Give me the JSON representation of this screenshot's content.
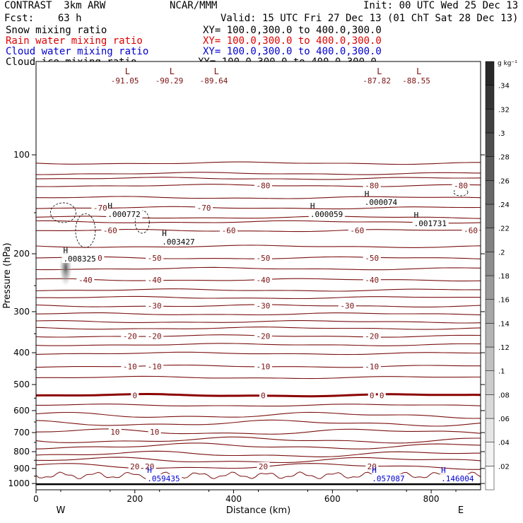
{
  "header": {
    "model": "CONTRAST  3km ARW",
    "org": "NCAR/MMM",
    "init": "Init: 00 UTC Wed 25 Dec 13",
    "fcst": "Fcst:    63 h",
    "valid": "Valid: 15 UTC Fri 27 Dec 13 (01 ChT Sat 28 Dec 13)"
  },
  "fields": [
    {
      "label": "Snow mixing ratio",
      "xy": "XY= 100.0,300.0 to 400.0,300.0",
      "color": "#000000"
    },
    {
      "label": "Rain water mixing ratio",
      "xy": "XY= 100.0,300.0 to 400.0,300.0",
      "color": "#e00000"
    },
    {
      "label": "Cloud water mixing ratio",
      "xy": "XY= 100.0,300.0 to 400.0,300.0",
      "color": "#0000d0"
    },
    {
      "label": "Cloud ice mixing ratio",
      "xy": "XY= 100.0,300.0 to 400.0,300.0",
      "color": "#000000"
    }
  ],
  "chart_data": {
    "type": "cross-section contour",
    "xlabel": "Distance (km)",
    "ylabel": "Pressure (hPa)",
    "xlim": [
      0,
      900
    ],
    "ylim": [
      1045,
      52
    ],
    "x_ticks": [
      "0",
      "200",
      "400",
      "600",
      "800"
    ],
    "y_ticks": [
      "100",
      "200",
      "300",
      "400",
      "500",
      "600",
      "700",
      "800",
      "900",
      "1000"
    ],
    "direction_labels": {
      "west": "W",
      "east": "E"
    },
    "colorbar": {
      "unit": "g kg⁻¹",
      "levels": [
        ".02",
        ".04",
        ".06",
        ".08",
        ".1",
        ".12",
        ".14",
        ".16",
        ".18",
        ".2",
        ".22",
        ".24",
        ".26",
        ".28",
        ".3",
        ".32",
        ".34"
      ],
      "range": [
        0,
        0.36
      ]
    },
    "temperature_contours": {
      "color": "#7b1010",
      "zero_color": "#8b0000",
      "labeled": [
        {
          "value": "-80",
          "pressure": 124,
          "label_x": [
            460,
            680,
            860
          ]
        },
        {
          "value": "-70",
          "pressure": 145,
          "label_x": [
            130,
            340
          ]
        },
        {
          "value": "-60",
          "pressure": 170,
          "label_x": [
            150,
            390,
            650,
            880
          ]
        },
        {
          "value": "-50",
          "pressure": 206,
          "label_x": [
            120,
            240,
            460,
            680
          ]
        },
        {
          "value": "-40",
          "pressure": 240,
          "label_x": [
            100,
            240,
            460,
            680
          ]
        },
        {
          "value": "-30",
          "pressure": 288,
          "label_x": [
            240,
            460,
            630
          ]
        },
        {
          "value": "-20",
          "pressure": 356,
          "label_x": [
            190,
            240,
            460,
            680
          ]
        },
        {
          "value": "-10",
          "pressure": 440,
          "label_x": [
            190,
            240,
            460,
            680
          ]
        },
        {
          "value": "0",
          "pressure": 539,
          "label_x": [
            200,
            460,
            680,
            700
          ]
        },
        {
          "value": "10",
          "pressure": 697,
          "label_x": [
            160,
            240
          ]
        },
        {
          "value": "20",
          "pressure": 887,
          "label_x": [
            200,
            230,
            460,
            680
          ]
        }
      ],
      "unlabeled_pressures": [
        106,
        114,
        118,
        135,
        155,
        160,
        190,
        222,
        258,
        272,
        305,
        322,
        337,
        378,
        402,
        476,
        578,
        620,
        655,
        738,
        770,
        815,
        850
      ]
    },
    "lows": [
      {
        "label": "L",
        "value": "-91.05",
        "x": 180
      },
      {
        "label": "L",
        "value": "-90.29",
        "x": 270
      },
      {
        "label": "L",
        "value": "-89.64",
        "x": 360
      },
      {
        "label": "L",
        "value": "-87.82",
        "x": 690
      },
      {
        "label": "L",
        "value": "-88.55",
        "x": 770
      }
    ],
    "snow_highs": [
      {
        "label": "H",
        "value": ".000772",
        "x": 145,
        "pressure": 150
      },
      {
        "label": "H",
        "value": ".003427",
        "x": 255,
        "pressure": 182
      },
      {
        "label": "H",
        "value": ".000059",
        "x": 555,
        "pressure": 150
      },
      {
        "label": "H",
        "value": ".000074",
        "x": 665,
        "pressure": 138
      },
      {
        "label": "H",
        "value": ".001731",
        "x": 765,
        "pressure": 160
      }
    ],
    "ice_high": {
      "label": "H",
      "value": ".008325",
      "x": 55,
      "pressure": 205
    },
    "cloud_water_highs": [
      {
        "label": "H",
        "value": ".059435",
        "x": 225,
        "pressure": 955
      },
      {
        "label": "H",
        "value": ".057087",
        "x": 680,
        "pressure": 955
      },
      {
        "label": "H",
        "value": ".146004",
        "x": 820,
        "pressure": 955
      }
    ],
    "cloud_water_contour_pressure": 945,
    "surface_pressure": 1005
  }
}
